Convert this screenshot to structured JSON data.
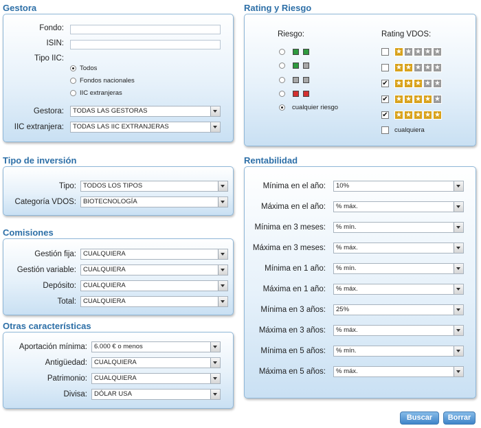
{
  "gestora": {
    "title": "Gestora",
    "fondo_label": "Fondo:",
    "fondo_value": "",
    "isin_label": "ISIN:",
    "isin_value": "",
    "tipo_iic_label": "Tipo IIC:",
    "tipo_options": [
      "Todos",
      "Fondos nacionales",
      "IIC extranjeras"
    ],
    "tipo_selected": "Todos",
    "gestora_label": "Gestora:",
    "gestora_value": "TODAS LAS GESTORAS",
    "iic_label": "IIC extranjera:",
    "iic_value": "TODAS LAS IIC EXTRANJERAS"
  },
  "rating": {
    "title": "Rating y Riesgo",
    "riesgo_label": "Riesgo:",
    "rating_label": "Rating VDOS:",
    "risk_levels": [
      {
        "colors": [
          "#2e9a3e",
          "#2e9a3e"
        ]
      },
      {
        "colors": [
          "#2e9a3e",
          "#a8a8a8"
        ]
      },
      {
        "colors": [
          "#a8a8a8",
          "#a8a8a8"
        ]
      },
      {
        "colors": [
          "#d33030",
          "#d33030"
        ]
      }
    ],
    "cualquier_riesgo": "cualquier riesgo",
    "risk_selected_index": 4,
    "ratings": [
      {
        "stars": 1,
        "checked": false
      },
      {
        "stars": 2,
        "checked": false
      },
      {
        "stars": 3,
        "checked": true
      },
      {
        "stars": 4,
        "checked": true
      },
      {
        "stars": 5,
        "checked": true
      }
    ],
    "cualquiera": "cualquiera",
    "cualquiera_checked": false,
    "star_gold": "#d8a21c",
    "star_grey": "#9a9a9a"
  },
  "inversion": {
    "title": "Tipo de inversión",
    "tipo_label": "Tipo:",
    "tipo_value": "TODOS LOS TIPOS",
    "cat_label": "Categoría VDOS:",
    "cat_value": "BIOTECNOLOGÍA"
  },
  "comisiones": {
    "title": "Comisiones",
    "rows": [
      {
        "label": "Gestión fija:",
        "value": "CUALQUIERA"
      },
      {
        "label": "Gestión variable:",
        "value": "CUALQUIERA"
      },
      {
        "label": "Depósito:",
        "value": "CUALQUIERA"
      },
      {
        "label": "Total:",
        "value": "CUALQUIERA"
      }
    ]
  },
  "otras": {
    "title": "Otras características",
    "rows": [
      {
        "label": "Aportación mínima:",
        "value": "6.000 € o menos"
      },
      {
        "label": "Antigüedad:",
        "value": "CUALQUIERA"
      },
      {
        "label": "Patrimonio:",
        "value": "CUALQUIERA"
      },
      {
        "label": "Divisa:",
        "value": "DÓLAR USA"
      }
    ]
  },
  "rentabilidad": {
    "title": "Rentabilidad",
    "rows": [
      {
        "label": "Mínima en el año:",
        "value": "10%"
      },
      {
        "label": "Máxima en el año:",
        "value": "% máx."
      },
      {
        "label": "Mínima en 3 meses:",
        "value": "% mín."
      },
      {
        "label": "Máxima en 3 meses:",
        "value": "% máx."
      },
      {
        "label": "Mínima en 1 año:",
        "value": "% mín."
      },
      {
        "label": "Máxima en 1 año:",
        "value": "% máx."
      },
      {
        "label": "Mínima en 3 años:",
        "value": "25%"
      },
      {
        "label": "Máxima en 3 años:",
        "value": "% máx."
      },
      {
        "label": "Mínima en 5 años:",
        "value": "% mín."
      },
      {
        "label": "Máxima en 5 años:",
        "value": "% máx."
      }
    ]
  },
  "buttons": {
    "buscar": "Buscar",
    "borrar": "Borrar"
  }
}
